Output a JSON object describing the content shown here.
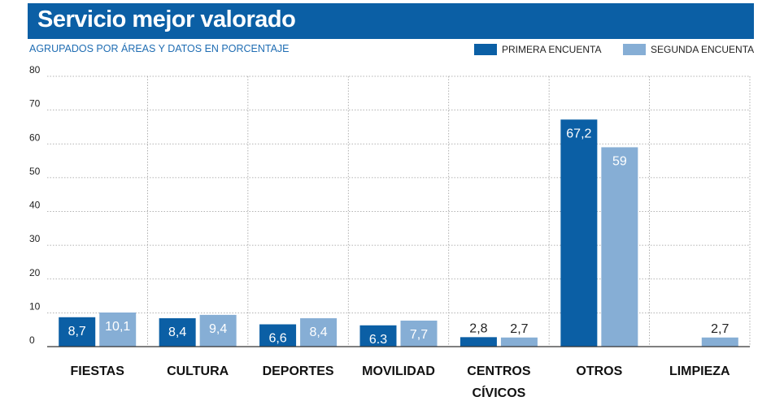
{
  "header": {
    "title": "Servicio mejor valorado",
    "subtitle": "AGRUPADOS POR ÁREAS Y DATOS EN PORCENTAJE"
  },
  "colors": {
    "primary": "#0b5fa5",
    "secondary": "#86aed5",
    "title_bg": "#0b5fa5",
    "grid": "#9a9a9a"
  },
  "chart_data": {
    "type": "bar",
    "title": "Servicio mejor valorado",
    "subtitle": "AGRUPADOS POR ÁREAS Y DATOS EN PORCENTAJE",
    "categories": [
      "FIESTAS",
      "CULTURA",
      "DEPORTES",
      "MOVILIDAD",
      "CENTROS CÍVICOS",
      "OTROS",
      "LIMPIEZA"
    ],
    "category_lines": [
      [
        "FIESTAS"
      ],
      [
        "CULTURA"
      ],
      [
        "DEPORTES"
      ],
      [
        "MOVILIDAD"
      ],
      [
        "CENTROS",
        "CÍVICOS"
      ],
      [
        "OTROS"
      ],
      [
        "LIMPIEZA"
      ]
    ],
    "series": [
      {
        "name": "PRIMERA ENCUENTA",
        "values": [
          8.7,
          8.4,
          6.6,
          6.3,
          2.8,
          67.2,
          null
        ],
        "labels": [
          "8,7",
          "8,4",
          "6,6",
          "6.3",
          "2,8",
          "67,2",
          ""
        ]
      },
      {
        "name": "SEGUNDA ENCUENTA",
        "values": [
          10.1,
          9.4,
          8.4,
          7.7,
          2.7,
          59,
          2.7
        ],
        "labels": [
          "10,1",
          "9,4",
          "8,4",
          "7,7",
          "2,7",
          "59",
          "2,7"
        ]
      }
    ],
    "yticks": [
      0,
      10,
      20,
      30,
      40,
      50,
      60,
      70,
      80
    ],
    "ytick_labels": [
      "0",
      "10",
      "20",
      "30",
      "40",
      "50",
      "60",
      "70",
      "80"
    ],
    "ylim": [
      0,
      80
    ],
    "xlabel": "",
    "ylabel": "",
    "legend_position": "top-right",
    "grid": true
  }
}
